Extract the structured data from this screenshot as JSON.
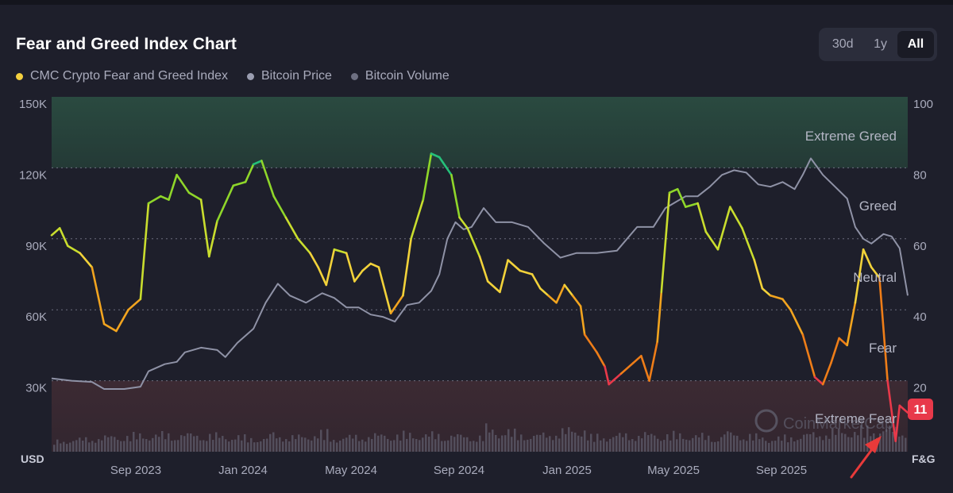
{
  "header": {
    "title": "Fear and Greed Index Chart",
    "range_options": [
      "30d",
      "1y",
      "All"
    ],
    "active_range": "All"
  },
  "chart_data": {
    "type": "line",
    "x_axis_ticks": [
      "Sep 2023",
      "Jan 2024",
      "May 2024",
      "Sep 2024",
      "Jan 2025",
      "May 2025",
      "Sep 2025"
    ],
    "left_axis": {
      "unit_label": "USD",
      "ticks": [
        "150K",
        "120K",
        "90K",
        "60K",
        "30K"
      ],
      "range": [
        0,
        150000
      ]
    },
    "right_axis": {
      "unit_label": "F&G",
      "ticks": [
        "100",
        "80",
        "60",
        "40",
        "20"
      ],
      "range": [
        0,
        100
      ]
    },
    "zones": [
      {
        "label": "Extreme Greed",
        "from": 80,
        "to": 100
      },
      {
        "label": "Greed",
        "from": 60,
        "to": 80
      },
      {
        "label": "Neutral",
        "from": 40,
        "to": 60
      },
      {
        "label": "Fear",
        "from": 20,
        "to": 40
      },
      {
        "label": "Extreme Fear",
        "from": 0,
        "to": 20
      }
    ],
    "series": [
      {
        "name": "CMC Crypto Fear and Greed Index",
        "color": "#f4d03f",
        "axis": "right",
        "points": [
          [
            0,
            61
          ],
          [
            0.2,
            63
          ],
          [
            0.4,
            58
          ],
          [
            0.7,
            56
          ],
          [
            1.0,
            52
          ],
          [
            1.3,
            36
          ],
          [
            1.6,
            34
          ],
          [
            1.9,
            40
          ],
          [
            2.2,
            43
          ],
          [
            2.4,
            70
          ],
          [
            2.7,
            72
          ],
          [
            2.9,
            71
          ],
          [
            3.1,
            78
          ],
          [
            3.4,
            73
          ],
          [
            3.7,
            71
          ],
          [
            3.9,
            55
          ],
          [
            4.1,
            65
          ],
          [
            4.5,
            75
          ],
          [
            4.8,
            76
          ],
          [
            5.0,
            81
          ],
          [
            5.2,
            82
          ],
          [
            5.5,
            72
          ],
          [
            5.8,
            66
          ],
          [
            6.1,
            60
          ],
          [
            6.4,
            56
          ],
          [
            6.6,
            52
          ],
          [
            6.8,
            47
          ],
          [
            7.0,
            57
          ],
          [
            7.3,
            56
          ],
          [
            7.5,
            48
          ],
          [
            7.7,
            51
          ],
          [
            7.9,
            53
          ],
          [
            8.1,
            52
          ],
          [
            8.4,
            39
          ],
          [
            8.7,
            44
          ],
          [
            8.9,
            60
          ],
          [
            9.2,
            71
          ],
          [
            9.4,
            84
          ],
          [
            9.6,
            83
          ],
          [
            9.9,
            78
          ],
          [
            10.1,
            66
          ],
          [
            10.3,
            63
          ],
          [
            10.6,
            55
          ],
          [
            10.8,
            48
          ],
          [
            11.1,
            45
          ],
          [
            11.3,
            54
          ],
          [
            11.6,
            51
          ],
          [
            11.9,
            50
          ],
          [
            12.1,
            46
          ],
          [
            12.3,
            44
          ],
          [
            12.5,
            42
          ],
          [
            12.7,
            47
          ],
          [
            12.9,
            44
          ],
          [
            13.1,
            41
          ],
          [
            13.2,
            33
          ],
          [
            13.5,
            28
          ],
          [
            13.7,
            24
          ],
          [
            13.8,
            19
          ],
          [
            14.1,
            22
          ],
          [
            14.4,
            25
          ],
          [
            14.6,
            27
          ],
          [
            14.8,
            20
          ],
          [
            15.0,
            31
          ],
          [
            15.1,
            45
          ],
          [
            15.3,
            73
          ],
          [
            15.5,
            74
          ],
          [
            15.7,
            69
          ],
          [
            16.0,
            70
          ],
          [
            16.2,
            62
          ],
          [
            16.5,
            57
          ],
          [
            16.8,
            69
          ],
          [
            17.1,
            63
          ],
          [
            17.4,
            54
          ],
          [
            17.6,
            46
          ],
          [
            17.8,
            44
          ],
          [
            18.1,
            43
          ],
          [
            18.3,
            40
          ],
          [
            18.6,
            33
          ],
          [
            18.9,
            21
          ],
          [
            19.1,
            19
          ],
          [
            19.3,
            25
          ],
          [
            19.5,
            32
          ],
          [
            19.7,
            30
          ],
          [
            19.9,
            42
          ],
          [
            20.1,
            57
          ],
          [
            20.3,
            52
          ],
          [
            20.5,
            49
          ],
          [
            20.7,
            20
          ],
          [
            20.9,
            3
          ],
          [
            21.0,
            13
          ],
          [
            21.2,
            11
          ]
        ]
      },
      {
        "name": "Bitcoin Price",
        "color": "#9a9db0",
        "axis": "left",
        "points": [
          [
            0,
            31000
          ],
          [
            0.5,
            30000
          ],
          [
            1.0,
            29500
          ],
          [
            1.3,
            26500
          ],
          [
            1.8,
            26500
          ],
          [
            2.2,
            27500
          ],
          [
            2.4,
            34000
          ],
          [
            2.8,
            37000
          ],
          [
            3.1,
            38000
          ],
          [
            3.3,
            42000
          ],
          [
            3.7,
            44000
          ],
          [
            4.1,
            43000
          ],
          [
            4.3,
            40000
          ],
          [
            4.6,
            46000
          ],
          [
            5.0,
            52000
          ],
          [
            5.3,
            63000
          ],
          [
            5.6,
            71000
          ],
          [
            5.9,
            66000
          ],
          [
            6.3,
            63000
          ],
          [
            6.7,
            67000
          ],
          [
            7.0,
            65000
          ],
          [
            7.3,
            61000
          ],
          [
            7.6,
            61000
          ],
          [
            7.9,
            58000
          ],
          [
            8.2,
            57000
          ],
          [
            8.5,
            55000
          ],
          [
            8.8,
            62000
          ],
          [
            9.1,
            63000
          ],
          [
            9.4,
            68000
          ],
          [
            9.6,
            75000
          ],
          [
            9.8,
            90000
          ],
          [
            10.0,
            97000
          ],
          [
            10.2,
            94000
          ],
          [
            10.4,
            95000
          ],
          [
            10.7,
            103000
          ],
          [
            11.0,
            97000
          ],
          [
            11.4,
            97000
          ],
          [
            11.8,
            95000
          ],
          [
            12.2,
            88000
          ],
          [
            12.6,
            82000
          ],
          [
            13.0,
            84000
          ],
          [
            13.5,
            84000
          ],
          [
            14.0,
            85000
          ],
          [
            14.5,
            95000
          ],
          [
            14.9,
            95000
          ],
          [
            15.2,
            103000
          ],
          [
            15.4,
            105000
          ],
          [
            15.7,
            108000
          ],
          [
            16.0,
            108000
          ],
          [
            16.3,
            112000
          ],
          [
            16.6,
            117000
          ],
          [
            16.9,
            119000
          ],
          [
            17.2,
            118000
          ],
          [
            17.5,
            113000
          ],
          [
            17.8,
            112000
          ],
          [
            18.1,
            114000
          ],
          [
            18.4,
            111000
          ],
          [
            18.6,
            117000
          ],
          [
            18.8,
            124000
          ],
          [
            19.1,
            117000
          ],
          [
            19.4,
            112000
          ],
          [
            19.7,
            107000
          ],
          [
            19.9,
            95000
          ],
          [
            20.1,
            90000
          ],
          [
            20.3,
            88000
          ],
          [
            20.6,
            92000
          ],
          [
            20.8,
            91000
          ],
          [
            21.0,
            86000
          ],
          [
            21.2,
            66000
          ]
        ]
      },
      {
        "name": "Bitcoin Volume",
        "color": "#6e7082",
        "axis": "none"
      }
    ],
    "current_value_badge": "11",
    "watermark": "CoinMarketCap",
    "grid": "dotted horizontal at zone boundaries",
    "legend_position": "top-left"
  }
}
